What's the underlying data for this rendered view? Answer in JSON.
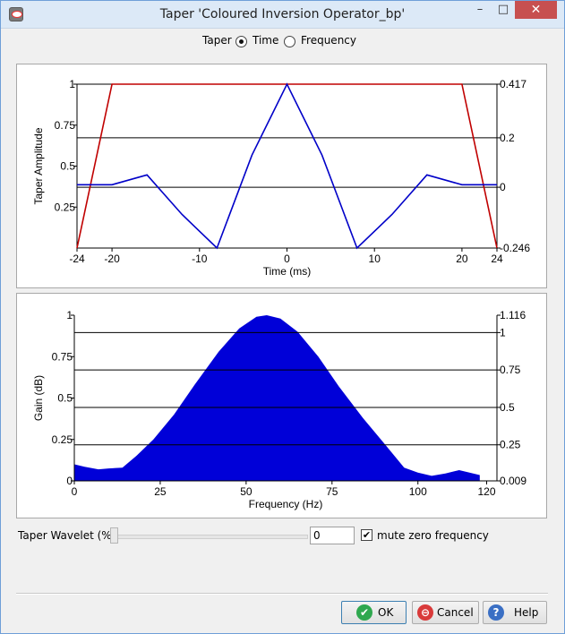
{
  "window": {
    "title": "Taper 'Coloured Inversion Operator_bp'",
    "minimize_glyph": "–",
    "maximize_glyph": "□",
    "close_glyph": "✕"
  },
  "taper_mode": {
    "label": "Taper",
    "options": [
      "Time",
      "Frequency"
    ],
    "selected": "Time"
  },
  "time_chart": {
    "ylabel": "Taper Amplitude",
    "xlabel": "Time (ms)",
    "x_ticks": [
      "-24",
      "-20",
      "-10",
      "0",
      "10",
      "20",
      "24"
    ],
    "y_left_ticks": [
      "1",
      "0.75",
      "0.5",
      "0.25"
    ],
    "y_right_ticks": [
      "0.417",
      "0.2",
      "0",
      "-0.246"
    ]
  },
  "freq_chart": {
    "ylabel": "Gain (dB)",
    "xlabel": "Frequency (Hz)",
    "x_ticks": [
      "0",
      "25",
      "50",
      "75",
      "100",
      "120"
    ],
    "y_left_ticks": [
      "1",
      "0.75",
      "0.5",
      "0.25",
      "0"
    ],
    "y_right_ticks": [
      "1.116",
      "1",
      "0.75",
      "0.5",
      "0.25",
      "0.009"
    ]
  },
  "taper_wavelet": {
    "label": "Taper Wavelet (%)",
    "value": "0",
    "percent": 0
  },
  "mute_zero": {
    "label": "mute zero frequency",
    "checked": true,
    "check_glyph": "✔"
  },
  "buttons": {
    "ok": "OK",
    "cancel": "Cancel",
    "help": "Help"
  },
  "icons": {
    "ok": "check-circle-icon",
    "cancel": "no-entry-icon",
    "help": "question-icon"
  },
  "colors": {
    "taper_line": "#c00000",
    "operator_line": "#0000c8",
    "spectrum_fill": "#0000d8",
    "ok_icon": "#2fa84f",
    "cancel_icon": "#d93a3a",
    "help_icon": "#3a6fc4"
  },
  "chart_data": [
    {
      "type": "line",
      "xlabel": "Time (ms)",
      "ylabel": "Taper Amplitude",
      "xlim": [
        -24,
        24
      ],
      "ylim_left": [
        0,
        1
      ],
      "ylim_right": [
        -0.246,
        0.417
      ],
      "x_ticks": [
        -24,
        -20,
        -10,
        0,
        10,
        20,
        24
      ],
      "y_left_ticks": [
        1,
        0.75,
        0.5,
        0.25
      ],
      "y_right_ticks": [
        0.417,
        0.2,
        0,
        -0.246
      ],
      "gridlines_right": [
        0.417,
        0.2,
        0
      ],
      "series": [
        {
          "axis": "left",
          "x": [
            -24,
            -20,
            20,
            24
          ],
          "y": [
            0,
            1,
            1,
            0
          ]
        },
        {
          "axis": "right",
          "x": [
            -24,
            -20,
            -16,
            -12,
            -8,
            -4,
            0,
            4,
            8,
            12,
            16,
            20,
            24
          ],
          "y": [
            0.01,
            0.01,
            0.05,
            -0.11,
            -0.246,
            0.13,
            0.417,
            0.13,
            -0.246,
            -0.11,
            0.05,
            0.01,
            0.01
          ]
        }
      ]
    },
    {
      "type": "area",
      "xlabel": "Frequency (Hz)",
      "ylabel": "Gain (dB)",
      "xlim": [
        0,
        123
      ],
      "ylim_left": [
        0,
        1
      ],
      "ylim_right": [
        0.009,
        1.116
      ],
      "x_ticks": [
        0,
        25,
        50,
        75,
        100,
        120
      ],
      "y_left_ticks": [
        1,
        0.75,
        0.5,
        0.25,
        0
      ],
      "y_right_ticks": [
        1.116,
        1,
        0.75,
        0.5,
        0.25,
        0.009
      ],
      "gridlines_right": [
        1,
        0.75,
        0.5,
        0.25
      ],
      "series": [
        {
          "axis": "left",
          "x": [
            0,
            3,
            7,
            10,
            14,
            18,
            23,
            29,
            35,
            42,
            48,
            53,
            56,
            60,
            65,
            71,
            77,
            84,
            90,
            96,
            100,
            104,
            108,
            112,
            115,
            118
          ],
          "y": [
            0.1,
            0.085,
            0.07,
            0.075,
            0.08,
            0.15,
            0.25,
            0.4,
            0.58,
            0.78,
            0.92,
            0.99,
            1.0,
            0.98,
            0.9,
            0.75,
            0.57,
            0.38,
            0.23,
            0.08,
            0.05,
            0.03,
            0.045,
            0.065,
            0.05,
            0.035
          ]
        }
      ]
    }
  ]
}
